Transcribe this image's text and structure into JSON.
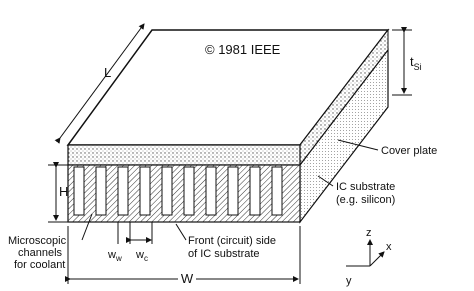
{
  "copyright": "© 1981 IEEE",
  "dimensions": {
    "length": "L",
    "height": "H",
    "width": "W",
    "silicon_thickness": {
      "main": "t",
      "sub": "Si"
    },
    "wall_width": {
      "main": "w",
      "sub": "w"
    },
    "channel_width": {
      "main": "w",
      "sub": "c"
    }
  },
  "labels": {
    "cover_plate": "Cover plate",
    "ic_substrate": [
      "IC substrate",
      "(e.g. silicon)"
    ],
    "channels": [
      "Microscopic",
      "channels",
      "for coolant"
    ],
    "front_side": [
      "Front (circuit) side",
      "of IC substrate"
    ]
  },
  "axes": {
    "z": "z",
    "x": "x",
    "y": "y"
  }
}
